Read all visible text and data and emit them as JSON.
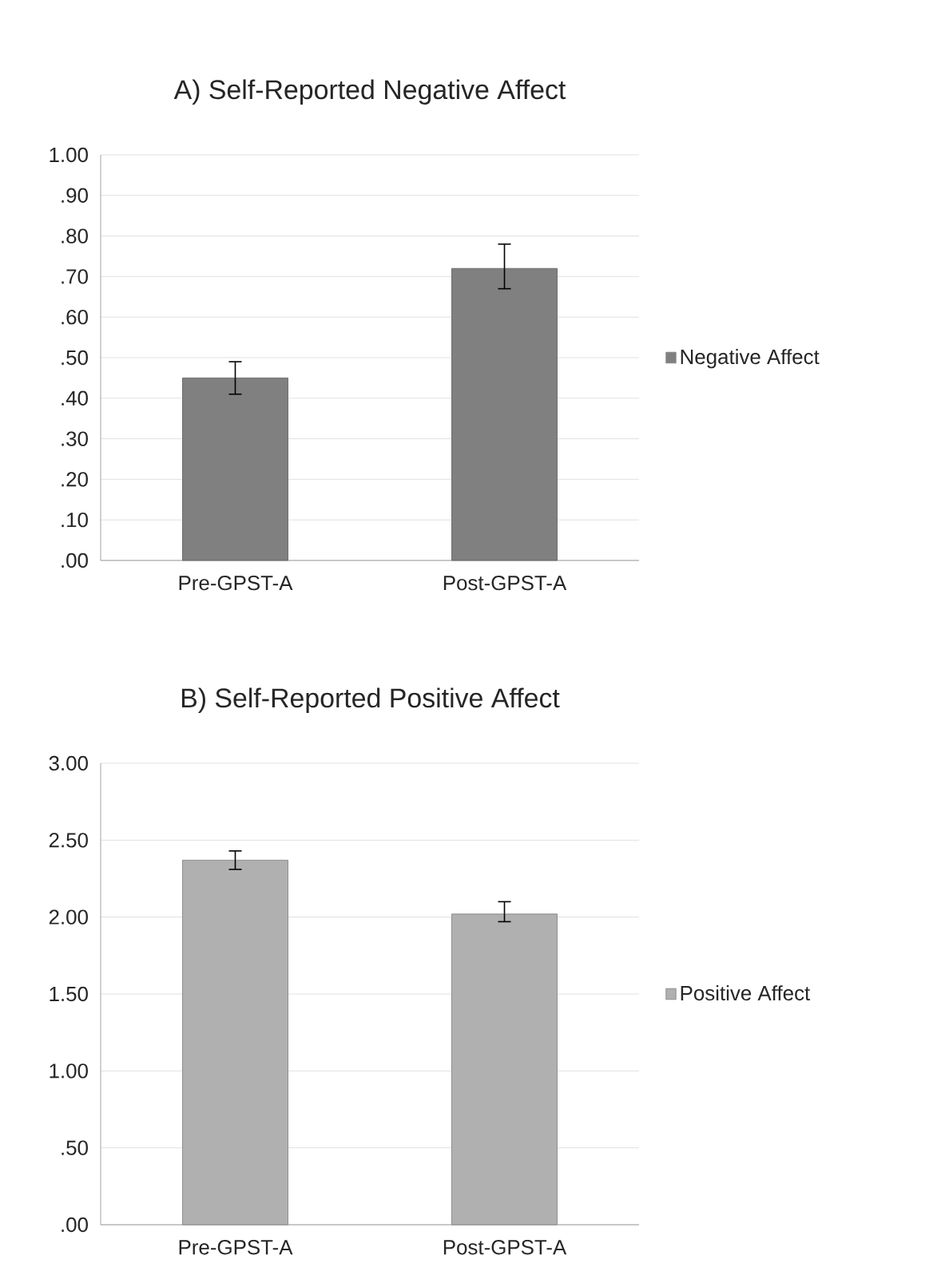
{
  "chart_data": [
    {
      "type": "bar",
      "title": "A) Self-Reported Negative Affect",
      "categories": [
        "Pre-GPST-A",
        "Post-GPST-A"
      ],
      "series": [
        {
          "name": "Negative Affect",
          "color": "#808080",
          "values": [
            0.45,
            0.72
          ],
          "errors": [
            [
              0.41,
              0.49
            ],
            [
              0.67,
              0.78
            ]
          ]
        }
      ],
      "ylim": [
        0,
        1
      ],
      "yticks": [
        {
          "value": 0,
          "label": ".00"
        },
        {
          "value": 0.1,
          "label": ".10"
        },
        {
          "value": 0.2,
          "label": ".20"
        },
        {
          "value": 0.3,
          "label": ".30"
        },
        {
          "value": 0.4,
          "label": ".40"
        },
        {
          "value": 0.5,
          "label": ".50"
        },
        {
          "value": 0.6,
          "label": ".60"
        },
        {
          "value": 0.7,
          "label": ".70"
        },
        {
          "value": 0.8,
          "label": ".80"
        },
        {
          "value": 0.9,
          "label": ".90"
        },
        {
          "value": 1,
          "label": "1.00"
        }
      ],
      "grid": "y",
      "legend": "right"
    },
    {
      "type": "bar",
      "title": "B) Self-Reported Positive Affect",
      "categories": [
        "Pre-GPST-A",
        "Post-GPST-A"
      ],
      "series": [
        {
          "name": "Positive Affect",
          "color": "#b0b0b0",
          "values": [
            2.37,
            2.02
          ],
          "errors": [
            [
              2.31,
              2.43
            ],
            [
              1.97,
              2.1
            ]
          ]
        }
      ],
      "ylim": [
        0,
        3
      ],
      "yticks": [
        {
          "value": 0,
          "label": ".00"
        },
        {
          "value": 0.5,
          "label": ".50"
        },
        {
          "value": 1,
          "label": "1.00"
        },
        {
          "value": 1.5,
          "label": "1.50"
        },
        {
          "value": 2,
          "label": "2.00"
        },
        {
          "value": 2.5,
          "label": "2.50"
        },
        {
          "value": 3,
          "label": "3.00"
        }
      ],
      "grid": "y",
      "legend": "right"
    }
  ]
}
